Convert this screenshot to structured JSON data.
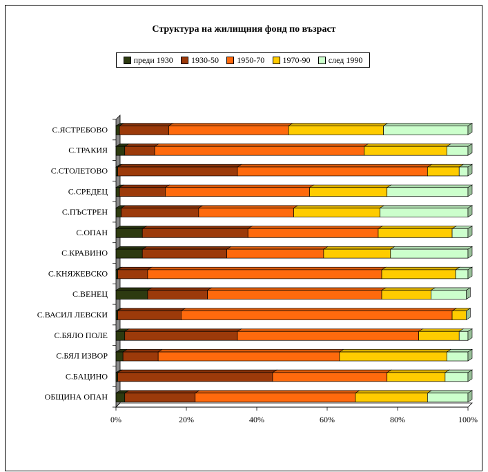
{
  "chart_data": {
    "type": "bar",
    "orientation": "horizontal",
    "stacked": "percent",
    "title": "Структура на жилищния фонд по възраст",
    "xlabel": "",
    "ylabel": "",
    "xlim": [
      0,
      100
    ],
    "x_ticks": [
      "0%",
      "20%",
      "40%",
      "60%",
      "80%",
      "100%"
    ],
    "legend_position": "top",
    "grid": false,
    "categories": [
      "С.ЯСТРЕБОВО",
      "С.ТРАКИЯ",
      "С.СТОЛЕТОВО",
      "С.СРЕДЕЦ",
      "С.ПЪСТРЕН",
      "С.ОПАН",
      "С.КРАВИНО",
      "С.КНЯЖЕВСКО",
      "С.ВЕНЕЦ",
      "С.ВАСИЛ ЛЕВСКИ",
      "С.БЯЛО ПОЛЕ",
      "С.БЯЛ ИЗВОР",
      "С.БАЦИНО",
      "ОБЩИНА ОПАН"
    ],
    "series": [
      {
        "name": "преди 1930",
        "color": "#2d3a10",
        "values": [
          1,
          2.5,
          0.5,
          1,
          1.5,
          7.5,
          7.5,
          0.5,
          9,
          0.5,
          2.5,
          2,
          0.5,
          2.5
        ]
      },
      {
        "name": "1930-50",
        "color": "#9c3a0a",
        "values": [
          14,
          8.5,
          34,
          13,
          22,
          30,
          24,
          8.5,
          17,
          18,
          32,
          10,
          44,
          20
        ]
      },
      {
        "name": "1950-70",
        "color": "#ff6a0d",
        "values": [
          34,
          59.5,
          54,
          41,
          27,
          37,
          27.5,
          66.5,
          49.5,
          77,
          51.5,
          51.5,
          32.5,
          45.5
        ]
      },
      {
        "name": "1970-90",
        "color": "#ffcc00",
        "values": [
          27,
          23.5,
          9,
          22,
          24.5,
          21,
          19,
          21,
          14,
          4,
          11.5,
          30.5,
          16.5,
          20.5
        ]
      },
      {
        "name": "след 1990",
        "color": "#ccffcc",
        "values": [
          24,
          6,
          2.5,
          23,
          25,
          4.5,
          22,
          3.5,
          10,
          0,
          2.5,
          6,
          6.5,
          11.5
        ]
      }
    ]
  }
}
